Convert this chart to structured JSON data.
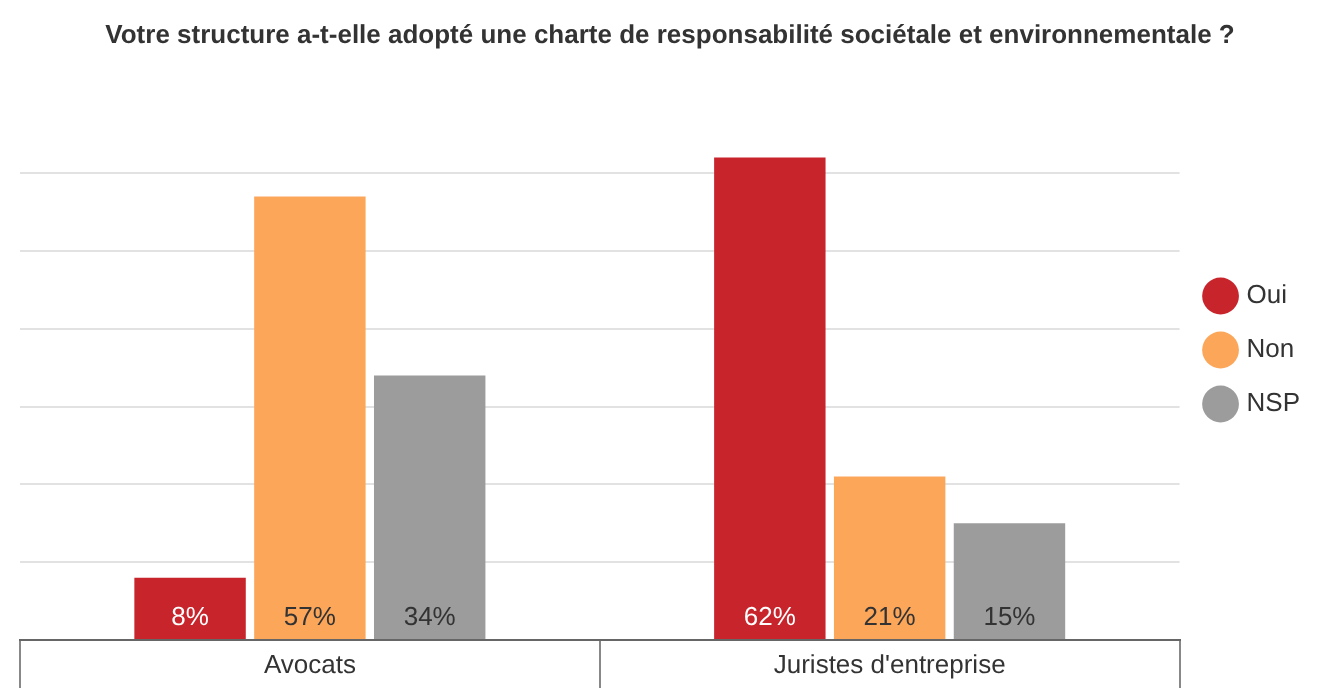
{
  "chart_data": {
    "type": "bar",
    "title": "Votre structure a-t-elle adopté une charte de responsabilité sociétale et environnementale ?",
    "categories": [
      "Avocats",
      "Juristes d'entreprise"
    ],
    "series": [
      {
        "name": "Oui",
        "color": "#c8242b",
        "values": [
          8,
          62
        ],
        "value_labels": [
          "8%",
          "62%"
        ]
      },
      {
        "name": "Non",
        "color": "#fca65a",
        "values": [
          57,
          21
        ],
        "value_labels": [
          "57%",
          "21%"
        ]
      },
      {
        "name": "NSP",
        "color": "#9c9c9c",
        "values": [
          34,
          15
        ],
        "value_labels": [
          "34%",
          "15%"
        ]
      }
    ],
    "yticks": [
      {
        "value": 0,
        "label": null
      },
      {
        "value": 10,
        "label": null
      },
      {
        "value": 20,
        "label": null
      },
      {
        "value": 30,
        "label": null
      },
      {
        "value": 40,
        "label": null
      },
      {
        "value": 50,
        "label": null
      },
      {
        "value": 60,
        "label": null
      }
    ],
    "grid": "y",
    "legend": "right",
    "tick_labels": "x"
  }
}
